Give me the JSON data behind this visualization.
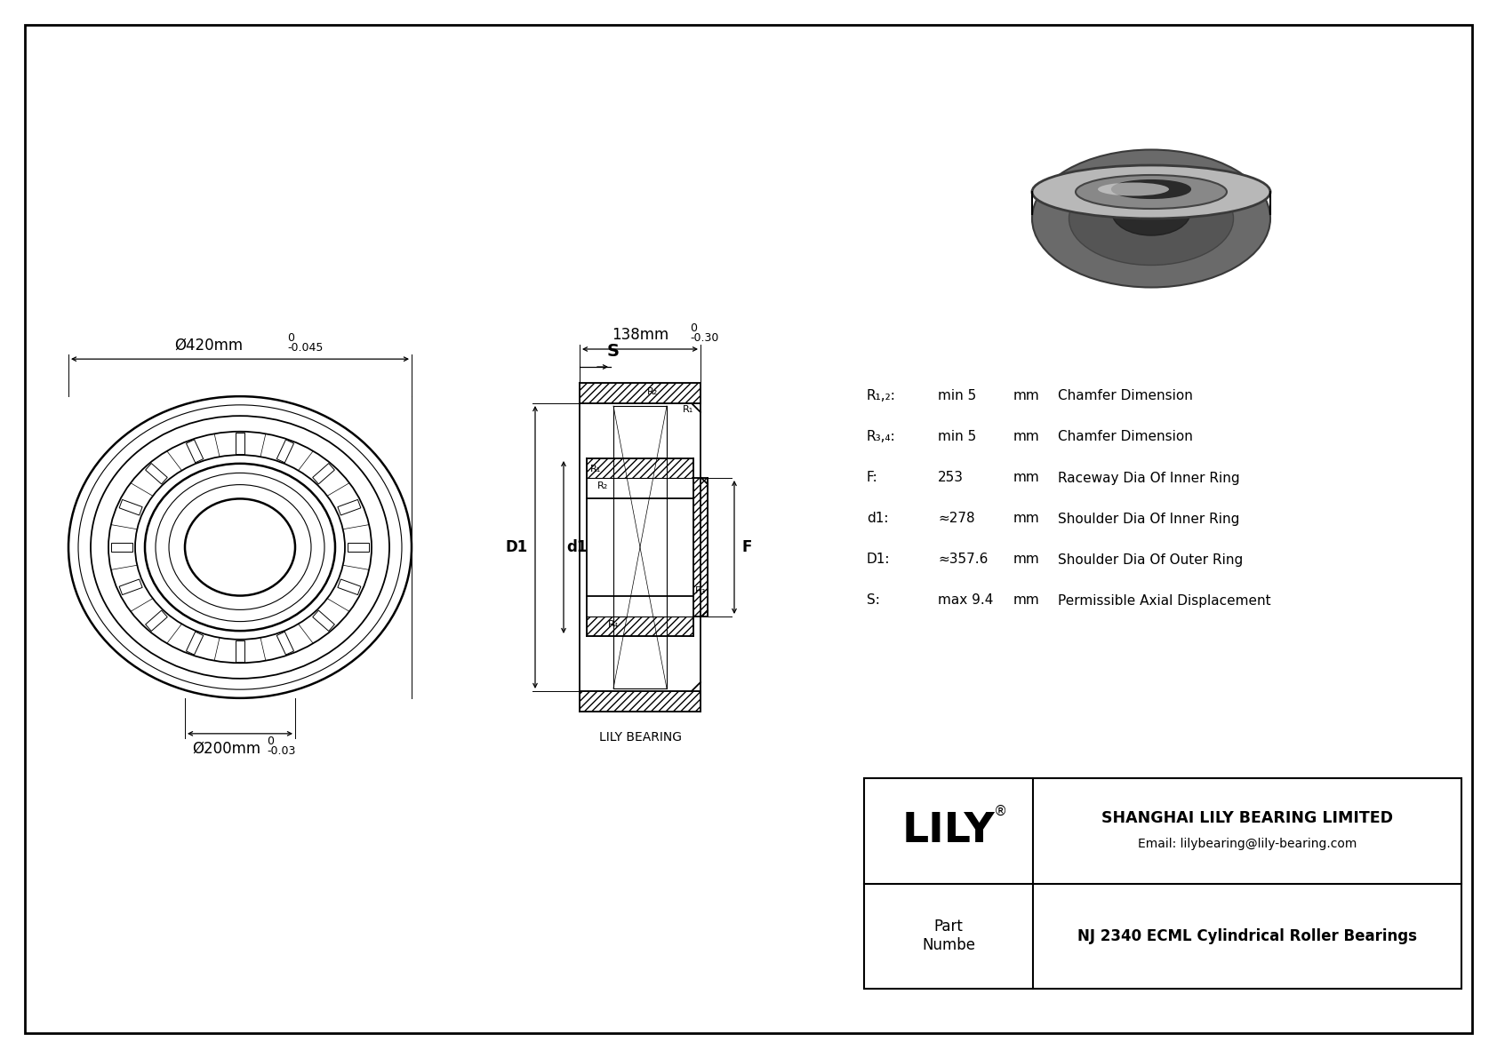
{
  "bg_color": "#ffffff",
  "line_color": "#000000",
  "title": "NJ 2340 ECML Cylindrical Roller Bearings",
  "company": "SHANGHAI LILY BEARING LIMITED",
  "email": "Email: lilybearing@lily-bearing.com",
  "logo": "LILY",
  "part_label": "Part\nNumbe",
  "lily_bearing_label": "LILY BEARING",
  "dim_outer": "Ø420mm",
  "dim_outer_tol_top": "0",
  "dim_outer_tol_bot": "-0.045",
  "dim_inner": "Ø200mm",
  "dim_inner_tol_top": "0",
  "dim_inner_tol_bot": "-0.03",
  "dim_width": "138mm",
  "dim_width_tol_top": "0",
  "dim_width_tol_bot": "-0.30",
  "params": [
    [
      "R₁,₂:",
      "min 5",
      "mm",
      "Chamfer Dimension"
    ],
    [
      "R₃,₄:",
      "min 5",
      "mm",
      "Chamfer Dimension"
    ],
    [
      "F:",
      "253",
      "mm",
      "Raceway Dia Of Inner Ring"
    ],
    [
      "d1:",
      "≈278",
      "mm",
      "Shoulder Dia Of Inner Ring"
    ],
    [
      "D1:",
      "≈357.6",
      "mm",
      "Shoulder Dia Of Outer Ring"
    ],
    [
      "S:",
      "max 9.4",
      "mm",
      "Permissible Axial Displacement"
    ]
  ]
}
